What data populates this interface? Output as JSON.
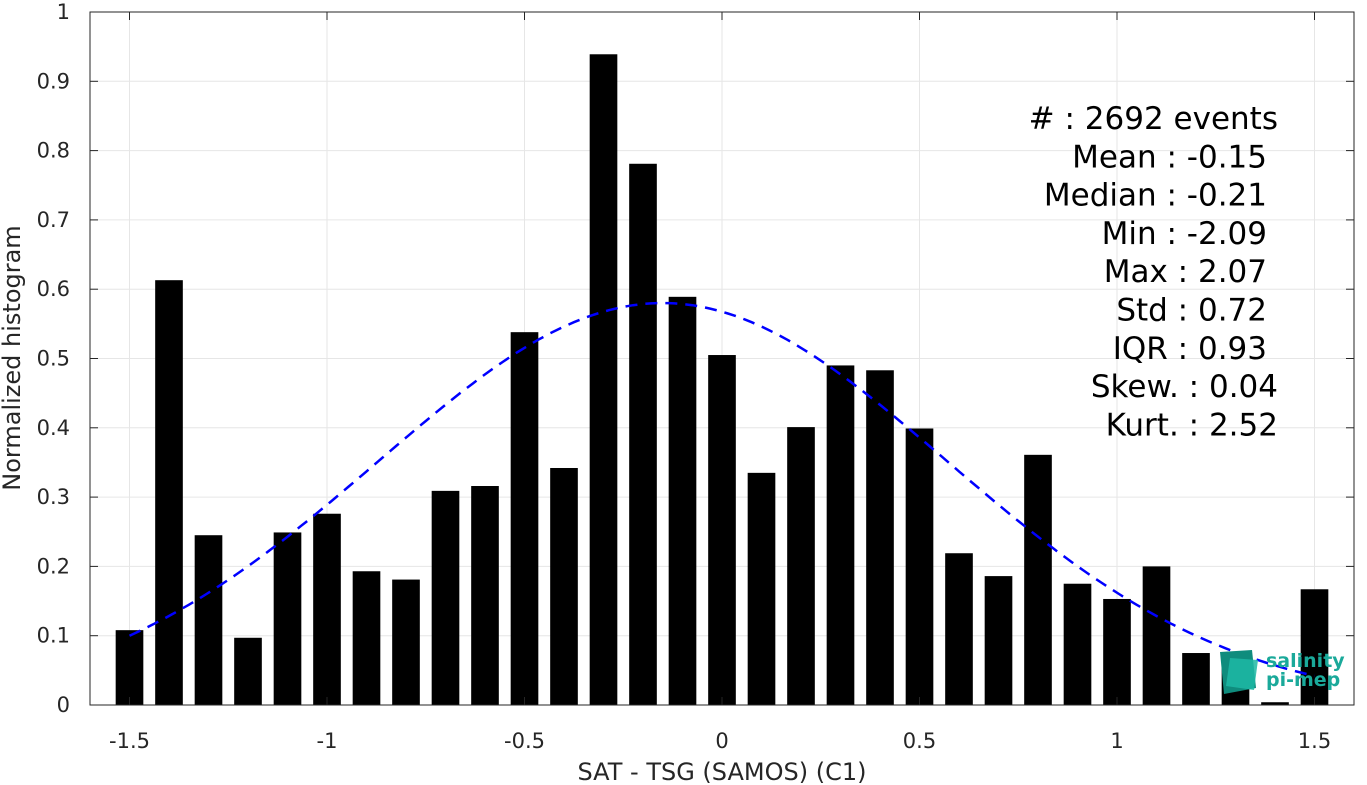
{
  "chart_data": {
    "type": "bar",
    "xlabel": "SAT - TSG (SAMOS) (C1)",
    "ylabel": "Normalized histogram",
    "xlim": [
      -1.6,
      1.6
    ],
    "ylim": [
      0,
      1
    ],
    "xticks": [
      -1.5,
      -1,
      -0.5,
      0,
      0.5,
      1,
      1.5
    ],
    "xtick_labels": [
      "-1.5",
      "-1",
      "-0.5",
      "0",
      "0.5",
      "1",
      "1.5"
    ],
    "yticks": [
      0,
      0.1,
      0.2,
      0.3,
      0.4,
      0.5,
      0.6,
      0.7,
      0.8,
      0.9,
      1
    ],
    "ytick_labels": [
      "0",
      "0.1",
      "0.2",
      "0.3",
      "0.4",
      "0.5",
      "0.6",
      "0.7",
      "0.8",
      "0.9",
      "1"
    ],
    "grid": true,
    "bar_width": 0.07,
    "x": [
      -1.5,
      -1.4,
      -1.3,
      -1.2,
      -1.1,
      -1.0,
      -0.9,
      -0.8,
      -0.7,
      -0.6,
      -0.5,
      -0.4,
      -0.3,
      -0.2,
      -0.1,
      0.0,
      0.1,
      0.2,
      0.3,
      0.4,
      0.5,
      0.6,
      0.7,
      0.8,
      0.9,
      1.0,
      1.1,
      1.2,
      1.3,
      1.4,
      1.5
    ],
    "values": [
      0.108,
      0.613,
      0.245,
      0.097,
      0.249,
      0.276,
      0.193,
      0.181,
      0.309,
      0.316,
      0.538,
      0.342,
      0.939,
      0.781,
      0.589,
      0.505,
      0.335,
      0.401,
      0.49,
      0.483,
      0.399,
      0.219,
      0.186,
      0.361,
      0.175,
      0.153,
      0.2,
      0.075,
      0.073,
      0.004,
      0.167
    ],
    "bar_color": "#000000",
    "fit_curve": {
      "kind": "gaussian",
      "mean": -0.15,
      "std": 0.72,
      "peak": 0.58,
      "color": "#0000ff",
      "style": "dashed"
    },
    "stats": [
      {
        "label": "#  : 2692 events",
        "align": "edge"
      },
      {
        "label": "Mean : -0.15",
        "align": "inner"
      },
      {
        "label": "Median : -0.21",
        "align": "inner"
      },
      {
        "label": "Min : -2.09",
        "align": "inner"
      },
      {
        "label": "Max : 2.07",
        "align": "inner"
      },
      {
        "label": "Std : 0.72",
        "align": "inner"
      },
      {
        "label": "IQR : 0.93",
        "align": "inner"
      },
      {
        "label": "Skew. : 0.04",
        "align": "edge"
      },
      {
        "label": "Kurt. : 2.52",
        "align": "edge"
      }
    ],
    "logo": {
      "line1": "salinity",
      "line2": "pi-mep",
      "color": "#1aa99a"
    }
  }
}
